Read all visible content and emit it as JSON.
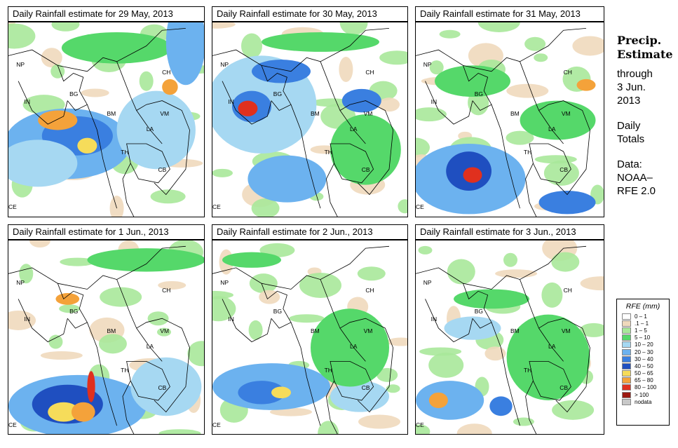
{
  "panels": [
    {
      "title": "Daily Rainfall estimate for  29 May, 2013",
      "regions": [
        "NP",
        "CH",
        "IN",
        "BG",
        "BM",
        "VM",
        "LA",
        "TH",
        "CB",
        "CE"
      ]
    },
    {
      "title": "Daily Rainfall estimate for  30 May, 2013",
      "regions": [
        "NP",
        "CH",
        "IN",
        "BG",
        "BM",
        "VM",
        "LA",
        "TH",
        "CB",
        "CE"
      ]
    },
    {
      "title": "Daily Rainfall estimate for  31 May, 2013",
      "regions": [
        "NP",
        "CH",
        "IN",
        "BG",
        "BM",
        "VM",
        "LA",
        "TH",
        "CB",
        "CE"
      ]
    },
    {
      "title": "Daily Rainfall estimate for  1 Jun., 2013",
      "regions": [
        "NP",
        "CH",
        "IN",
        "BG",
        "BM",
        "VM",
        "LA",
        "TH",
        "CB",
        "CE"
      ]
    },
    {
      "title": "Daily Rainfall estimate for  2 Jun., 2013",
      "regions": [
        "NP",
        "CH",
        "IN",
        "BG",
        "BM",
        "VM",
        "LA",
        "TH",
        "CB",
        "CE"
      ]
    },
    {
      "title": "Daily Rainfall estimate for  3 Jun., 2013",
      "regions": [
        "NP",
        "CH",
        "IN",
        "BG",
        "BM",
        "VM",
        "LA",
        "TH",
        "CB",
        "CE"
      ]
    }
  ],
  "side": {
    "title1": "Precip.",
    "title2": "Estimate",
    "through": "through",
    "date1": "3 Jun.",
    "date2": "2013",
    "daily1": "Daily",
    "daily2": "Totals",
    "data1": "Data:",
    "data2": "NOAA–",
    "data3": "RFE 2.0"
  },
  "legend": {
    "title": "RFE (mm)",
    "items": [
      {
        "label": "0 – 1",
        "color": "#ffffff"
      },
      {
        "label": ".1 – 1",
        "color": "#efd9bc"
      },
      {
        "label": "1 – 5",
        "color": "#a8e89a"
      },
      {
        "label": "5 – 10",
        "color": "#55d86a"
      },
      {
        "label": "10 – 20",
        "color": "#a6d8f2"
      },
      {
        "label": "20 – 30",
        "color": "#6cb2ef"
      },
      {
        "label": "30 – 40",
        "color": "#3a7fe0"
      },
      {
        "label": "40 – 50",
        "color": "#1f4fc0"
      },
      {
        "label": "50 – 65",
        "color": "#f6dc5a"
      },
      {
        "label": "65 – 80",
        "color": "#f4a23a"
      },
      {
        "label": "80 – 100",
        "color": "#e0301e"
      },
      {
        "label": "> 100",
        "color": "#9a1810"
      },
      {
        "label": "nodata",
        "color": "#c8c8c8"
      }
    ]
  }
}
